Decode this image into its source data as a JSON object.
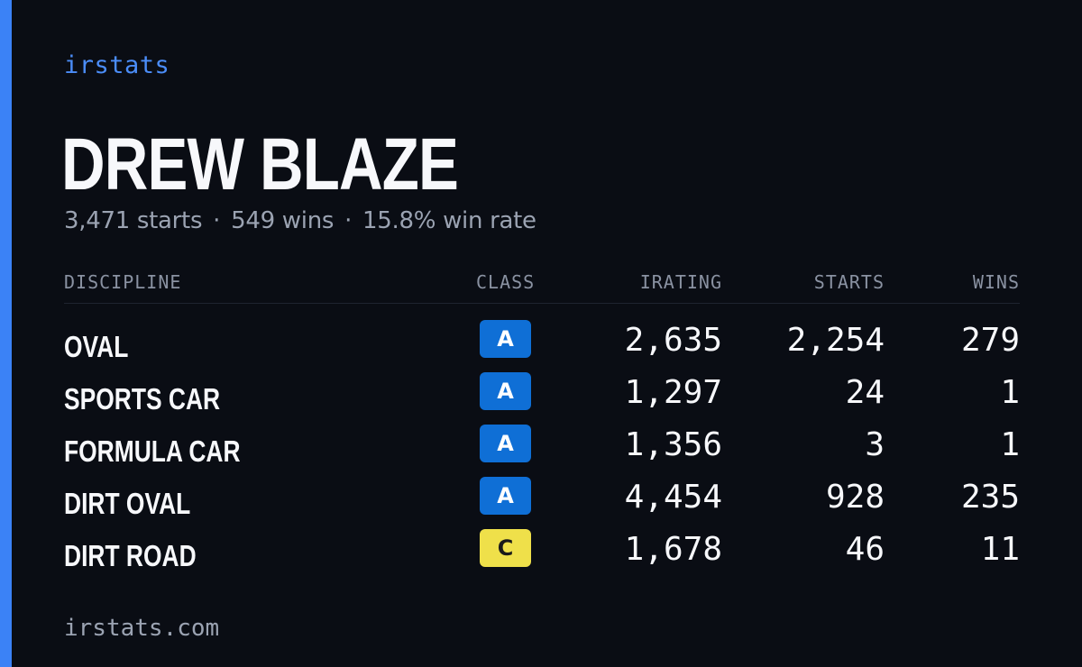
{
  "brand": "irstats",
  "driver": {
    "name": "DREW BLAZE",
    "starts_text": "3,471 starts",
    "wins_text": "549 wins",
    "win_rate_text": "15.8% win rate",
    "separator": "·"
  },
  "table": {
    "headers": {
      "discipline": "DISCIPLINE",
      "class": "CLASS",
      "irating": "IRATING",
      "starts": "STARTS",
      "wins": "WINS"
    },
    "rows": [
      {
        "discipline": "OVAL",
        "class": "A",
        "irating": "2,635",
        "starts": "2,254",
        "wins": "279"
      },
      {
        "discipline": "SPORTS CAR",
        "class": "A",
        "irating": "1,297",
        "starts": "24",
        "wins": "1"
      },
      {
        "discipline": "FORMULA CAR",
        "class": "A",
        "irating": "1,356",
        "starts": "3",
        "wins": "1"
      },
      {
        "discipline": "DIRT OVAL",
        "class": "A",
        "irating": "4,454",
        "starts": "928",
        "wins": "235"
      },
      {
        "discipline": "DIRT ROAD",
        "class": "C",
        "irating": "1,678",
        "starts": "46",
        "wins": "11"
      }
    ]
  },
  "footer": "irstats.com",
  "colors": {
    "background": "#0a0d14",
    "accent": "#3b82f6",
    "class_a": "#0f6fd6",
    "class_c": "#efe04a"
  }
}
